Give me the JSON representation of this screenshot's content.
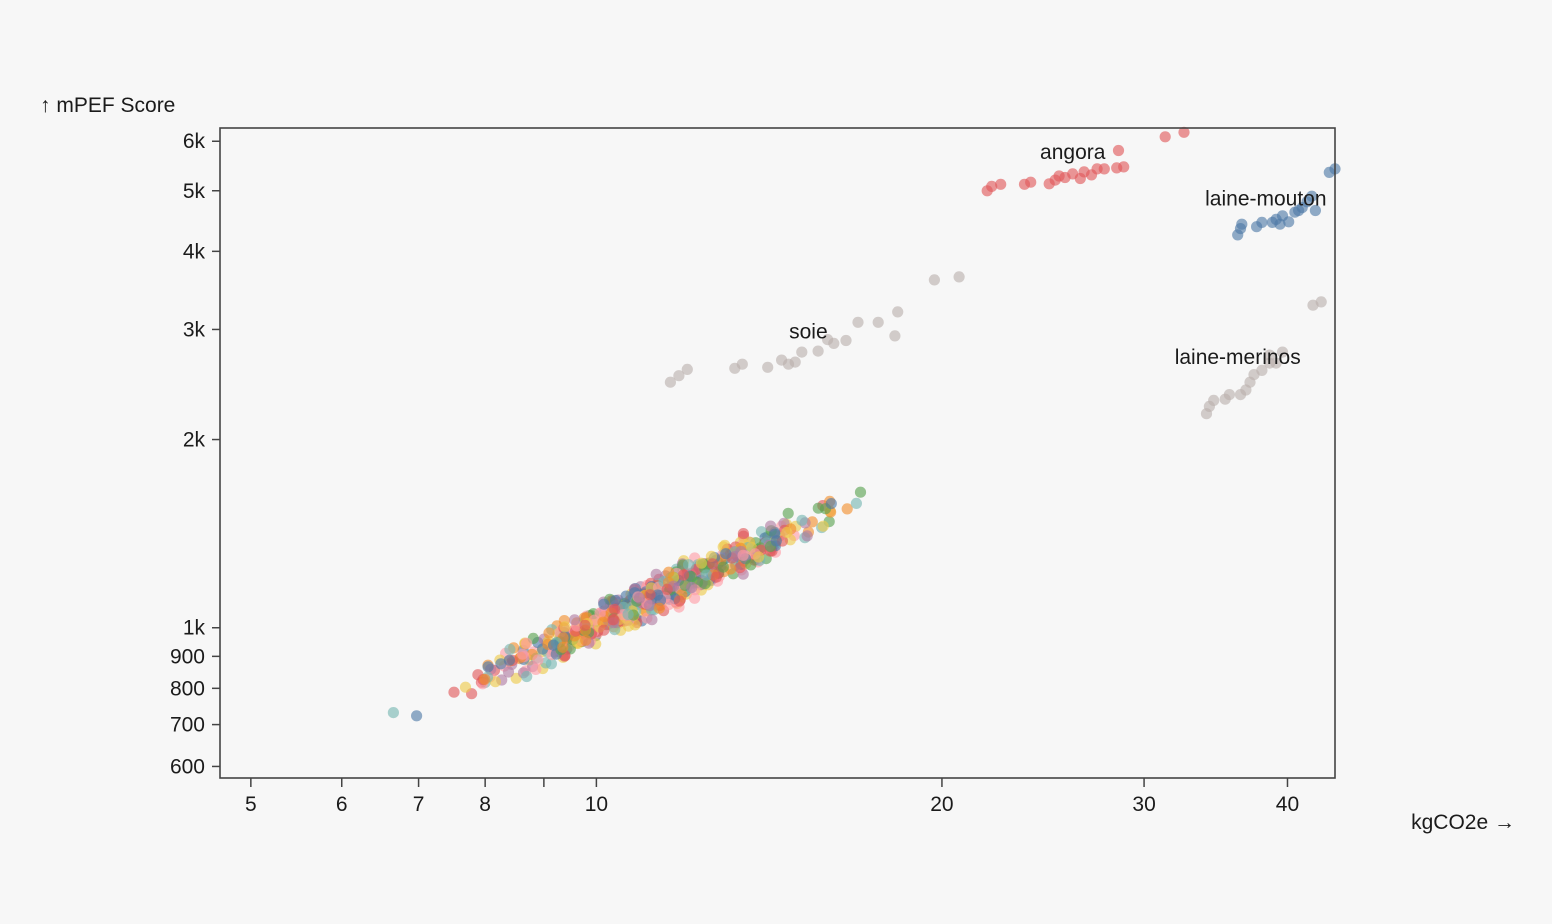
{
  "chart_data": {
    "type": "scatter",
    "x_scale": "log",
    "y_scale": "log",
    "xlabel": "kgCO2e →",
    "ylabel": "↑ mPEF Score",
    "xlim": [
      4.7,
      44.0
    ],
    "ylim": [
      575,
      6300
    ],
    "x_ticks": [
      {
        "value": 5,
        "label": "5"
      },
      {
        "value": 6,
        "label": "6"
      },
      {
        "value": 7,
        "label": "7"
      },
      {
        "value": 8,
        "label": "8"
      },
      {
        "value": 9,
        "label": ""
      },
      {
        "value": 10,
        "label": "10"
      },
      {
        "value": 20,
        "label": "20"
      },
      {
        "value": 30,
        "label": "30"
      },
      {
        "value": 40,
        "label": "40"
      }
    ],
    "y_ticks": [
      {
        "value": 600,
        "label": "600"
      },
      {
        "value": 700,
        "label": "700"
      },
      {
        "value": 800,
        "label": "800"
      },
      {
        "value": 900,
        "label": "900"
      },
      {
        "value": 1000,
        "label": "1k"
      },
      {
        "value": 2000,
        "label": "2k"
      },
      {
        "value": 3000,
        "label": "3k"
      },
      {
        "value": 4000,
        "label": "4k"
      },
      {
        "value": 5000,
        "label": "5k"
      },
      {
        "value": 6000,
        "label": "6k"
      }
    ],
    "grid": false,
    "annotations": [
      {
        "text": "angora",
        "x": 26.0,
        "y": 5620
      },
      {
        "text": "laine-mouton",
        "x": 38.3,
        "y": 4740
      },
      {
        "text": "soie",
        "x": 15.3,
        "y": 2900
      },
      {
        "text": "laine-merinos",
        "x": 36.2,
        "y": 2640
      }
    ],
    "series": [
      {
        "colors": {
          "angora": "#e15759",
          "laine-mouton": "#4e79a7",
          "soie": "#bab0ac",
          "laine-merinos": "#bab0ac"
        },
        "clusters": [
          {
            "points": [
              [
                21.9,
                5000
              ],
              [
                22.1,
                5080
              ],
              [
                22.5,
                5120
              ],
              [
                23.6,
                5120
              ],
              [
                23.9,
                5160
              ],
              [
                24.8,
                5130
              ],
              [
                25.1,
                5200
              ],
              [
                25.3,
                5280
              ],
              [
                25.6,
                5250
              ],
              [
                26.0,
                5320
              ],
              [
                26.4,
                5230
              ],
              [
                26.6,
                5360
              ],
              [
                27.0,
                5300
              ],
              [
                27.3,
                5420
              ],
              [
                27.7,
                5420
              ],
              [
                28.4,
                5440
              ],
              [
                28.8,
                5460
              ],
              [
                28.5,
                5800
              ],
              [
                31.3,
                6100
              ],
              [
                32.5,
                6200
              ]
            ]
          },
          {
            "points": [
              [
                36.2,
                4250
              ],
              [
                36.4,
                4350
              ],
              [
                36.5,
                4420
              ],
              [
                37.6,
                4380
              ],
              [
                38.0,
                4450
              ],
              [
                38.8,
                4450
              ],
              [
                39.1,
                4500
              ],
              [
                39.4,
                4420
              ],
              [
                39.6,
                4560
              ],
              [
                40.1,
                4460
              ],
              [
                40.6,
                4620
              ],
              [
                40.9,
                4650
              ],
              [
                41.2,
                4700
              ],
              [
                41.6,
                4800
              ],
              [
                42.0,
                4900
              ],
              [
                42.3,
                4650
              ],
              [
                43.5,
                5350
              ],
              [
                44.0,
                5420
              ]
            ]
          },
          {
            "points": [
              [
                11.6,
                2470
              ],
              [
                11.8,
                2530
              ],
              [
                12.0,
                2590
              ],
              [
                13.2,
                2600
              ],
              [
                13.4,
                2640
              ],
              [
                14.1,
                2610
              ],
              [
                14.5,
                2680
              ],
              [
                14.7,
                2640
              ],
              [
                14.9,
                2660
              ],
              [
                15.1,
                2760
              ],
              [
                15.6,
                2770
              ],
              [
                15.9,
                2890
              ],
              [
                16.1,
                2850
              ],
              [
                16.5,
                2880
              ],
              [
                16.9,
                3080
              ],
              [
                17.6,
                3080
              ],
              [
                18.2,
                2930
              ],
              [
                18.3,
                3200
              ],
              [
                19.7,
                3600
              ],
              [
                20.7,
                3640
              ]
            ]
          },
          {
            "points": [
              [
                34.0,
                2200
              ],
              [
                34.2,
                2260
              ],
              [
                34.5,
                2310
              ],
              [
                35.3,
                2320
              ],
              [
                35.6,
                2360
              ],
              [
                36.4,
                2360
              ],
              [
                36.8,
                2400
              ],
              [
                37.1,
                2470
              ],
              [
                37.4,
                2540
              ],
              [
                38.0,
                2580
              ],
              [
                38.6,
                2650
              ],
              [
                39.1,
                2650
              ],
              [
                39.6,
                2760
              ],
              [
                38.6,
                2730
              ],
              [
                42.1,
                3280
              ],
              [
                42.8,
                3320
              ]
            ]
          }
        ]
      }
    ],
    "main_palette": [
      "#4e79a7",
      "#f28e2b",
      "#e15759",
      "#76b7b2",
      "#59a14f",
      "#edc948",
      "#b07aa1",
      "#ff9da7"
    ],
    "main_cloud": {
      "count": 620,
      "trend": "log(y) ≈ 6.92 + 0.88 × log(x / 10)",
      "x_range": [
        4.7,
        23.0
      ]
    }
  }
}
